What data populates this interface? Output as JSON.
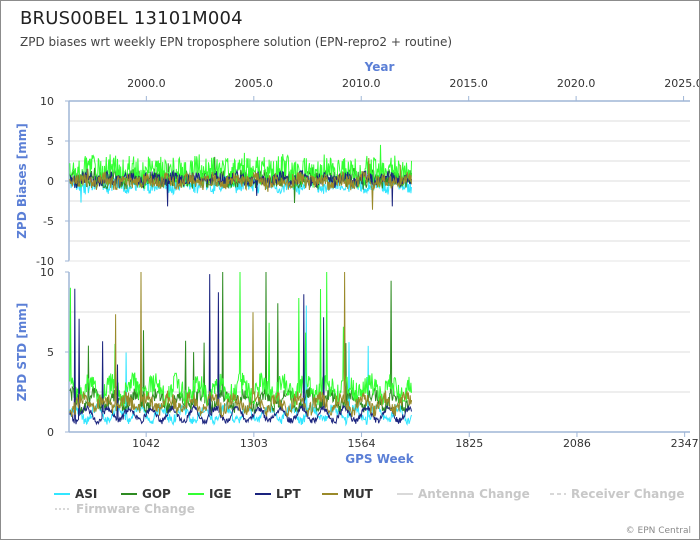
{
  "page": {
    "title": "BRUS00BEL 13101M004",
    "subtitle": "ZPD biases wrt weekly EPN troposphere solution (EPN-repro2 + routine)",
    "credit": "© EPN Central"
  },
  "chart_data": {
    "type": "line",
    "top_panel": {
      "ylabel": "ZPD Biases [mm]",
      "ylim": [
        -10,
        10
      ],
      "yticks": [
        -10,
        -5,
        0,
        5,
        10
      ]
    },
    "bottom_panel": {
      "ylabel": "ZPD STD [mm]",
      "ylim": [
        0,
        10
      ],
      "yticks": [
        0,
        5,
        10
      ]
    },
    "x_axis_bottom": {
      "label": "GPS Week",
      "range": [
        855,
        2360
      ],
      "ticks": [
        1042,
        1303,
        1564,
        1825,
        2086,
        2347
      ]
    },
    "x_axis_top": {
      "label": "Year",
      "range": [
        1996.4,
        2025.3
      ],
      "ticks": [
        "2000.0",
        "2005.0",
        "2010.0",
        "2015.0",
        "2020.0",
        "2025.0"
      ]
    },
    "data_range_weeks": [
      857,
      1686
    ],
    "grid": true,
    "legend_position": "bottom",
    "series": [
      {
        "name": "ASI",
        "color": "#33e6ff",
        "bias_mean": -0.5,
        "std_mean": 1.0
      },
      {
        "name": "GOP",
        "color": "#2e8b22",
        "bias_mean": 0.3,
        "std_mean": 1.8
      },
      {
        "name": "IGE",
        "color": "#33ff33",
        "bias_mean": 1.2,
        "std_mean": 2.4
      },
      {
        "name": "LPT",
        "color": "#1a237e",
        "bias_mean": 0.2,
        "std_mean": 1.0
      },
      {
        "name": "MUT",
        "color": "#9a8a2a",
        "bias_mean": 0.0,
        "std_mean": 1.6
      }
    ],
    "legend": [
      {
        "name": "ASI",
        "color": "#33e6ff",
        "style": "solid",
        "muted": false
      },
      {
        "name": "GOP",
        "color": "#2e8b22",
        "style": "solid",
        "muted": false
      },
      {
        "name": "IGE",
        "color": "#33ff33",
        "style": "solid",
        "muted": false
      },
      {
        "name": "LPT",
        "color": "#1a237e",
        "style": "solid",
        "muted": false
      },
      {
        "name": "MUT",
        "color": "#9a8a2a",
        "style": "solid",
        "muted": false
      },
      {
        "name": "Antenna Change",
        "color": "#cccccc",
        "style": "solid",
        "muted": true
      },
      {
        "name": "Receiver Change",
        "color": "#cccccc",
        "style": "dashed",
        "muted": true
      },
      {
        "name": "Firmware Change",
        "color": "#cccccc",
        "style": "dotted",
        "muted": true
      }
    ]
  }
}
